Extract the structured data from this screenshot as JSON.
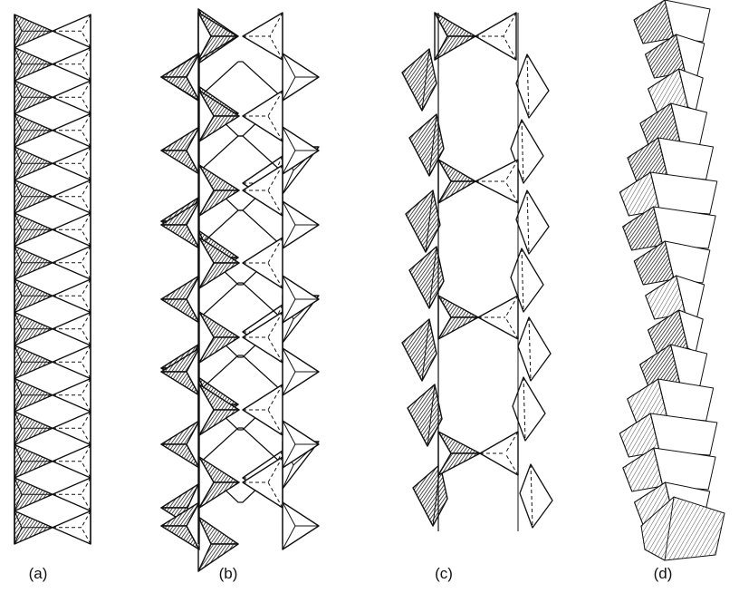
{
  "figure": {
    "panels": [
      {
        "id": "a",
        "label": "(a)"
      },
      {
        "id": "b",
        "label": "(b)"
      },
      {
        "id": "c",
        "label": "(c)"
      },
      {
        "id": "d",
        "label": "(d)"
      }
    ]
  },
  "colors": {
    "stroke": "#111111",
    "hatch": "#222222",
    "light_hatch": "#777777",
    "background": "#ffffff"
  }
}
